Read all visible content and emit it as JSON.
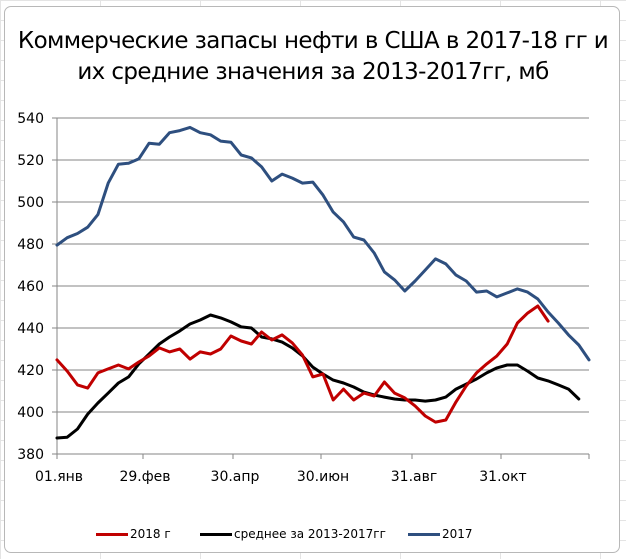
{
  "chart_data": {
    "type": "line",
    "title": "Коммерческие запасы нефти в США в 2017-18 гг и их средние значения за  2013-2017гг, мб",
    "title_lines": [
      "Коммерческие запасы нефти в США в 2017-18 гг и",
      "их средние значения за  2013-2017гг, мб"
    ],
    "xlabel": "",
    "ylabel": "",
    "ylim": [
      380,
      540
    ],
    "yticks": [
      380,
      400,
      420,
      440,
      460,
      480,
      500,
      520,
      540
    ],
    "xtick_labels": [
      "01.янв",
      "29.фев",
      "30.апр",
      "30.июн",
      "31.авг",
      "31.окт"
    ],
    "grid": true,
    "legend_position": "bottom",
    "x_unit": "week",
    "series": [
      {
        "name": "2018 г",
        "color": "#C00000",
        "values": [
          424.8,
          419.5,
          412.9,
          411.4,
          418.6,
          420.5,
          422.4,
          420.5,
          423.8,
          426.7,
          430.5,
          428.6,
          430,
          425.2,
          428.6,
          427.6,
          430,
          436.2,
          433.8,
          432.4,
          438.1,
          434.3,
          436.7,
          432.9,
          427.1,
          416.7,
          418.1,
          405.7,
          410.9,
          405.7,
          409,
          407.6,
          414.3,
          409,
          406.7,
          402.9,
          398.1,
          395.2,
          396.2,
          404.8,
          412.4,
          418.6,
          422.9,
          426.7,
          432.4,
          442.4,
          447.1,
          450.5,
          443.3
        ]
      },
      {
        "name": "среднее за 2013-2017гг",
        "color": "#000000",
        "values": [
          387.6,
          388,
          391.9,
          399,
          404.3,
          409,
          413.8,
          416.7,
          422.9,
          427.6,
          432.4,
          435.7,
          438.6,
          441.9,
          443.8,
          446.2,
          444.8,
          442.9,
          440.5,
          440,
          435.7,
          434.8,
          433.3,
          430.5,
          426.7,
          421.4,
          418.1,
          415.2,
          413.8,
          411.9,
          409.5,
          408.1,
          407.1,
          406.2,
          405.7,
          405.7,
          405.2,
          405.7,
          407.1,
          410.9,
          413.3,
          415.7,
          418.6,
          421,
          422.4,
          422.4,
          419.5,
          416.2,
          414.8,
          412.9,
          410.9,
          406.2
        ]
      },
      {
        "name": "2017",
        "color": "#2E4F7F",
        "values": [
          479.5,
          483,
          485,
          488,
          494,
          509,
          518,
          518.5,
          520.5,
          528,
          527.5,
          533,
          534,
          535.5,
          533,
          532,
          529,
          528.5,
          522.4,
          521,
          516.7,
          510,
          513.3,
          511.4,
          509,
          509.5,
          503.3,
          495.2,
          490.5,
          483.3,
          481.9,
          475.7,
          466.7,
          462.9,
          457.6,
          462.4,
          467.6,
          472.9,
          470.5,
          465.2,
          462.4,
          457.1,
          457.6,
          454.8,
          456.7,
          458.6,
          457.1,
          453.8,
          447.6,
          442.4,
          436.7,
          431.9,
          424.8
        ]
      }
    ]
  },
  "legend": {
    "items": [
      {
        "label": "2018 г",
        "color": "#C00000"
      },
      {
        "label": "среднее за 2013-2017гг",
        "color": "#000000"
      },
      {
        "label": "2017",
        "color": "#2E4F7F"
      }
    ]
  }
}
